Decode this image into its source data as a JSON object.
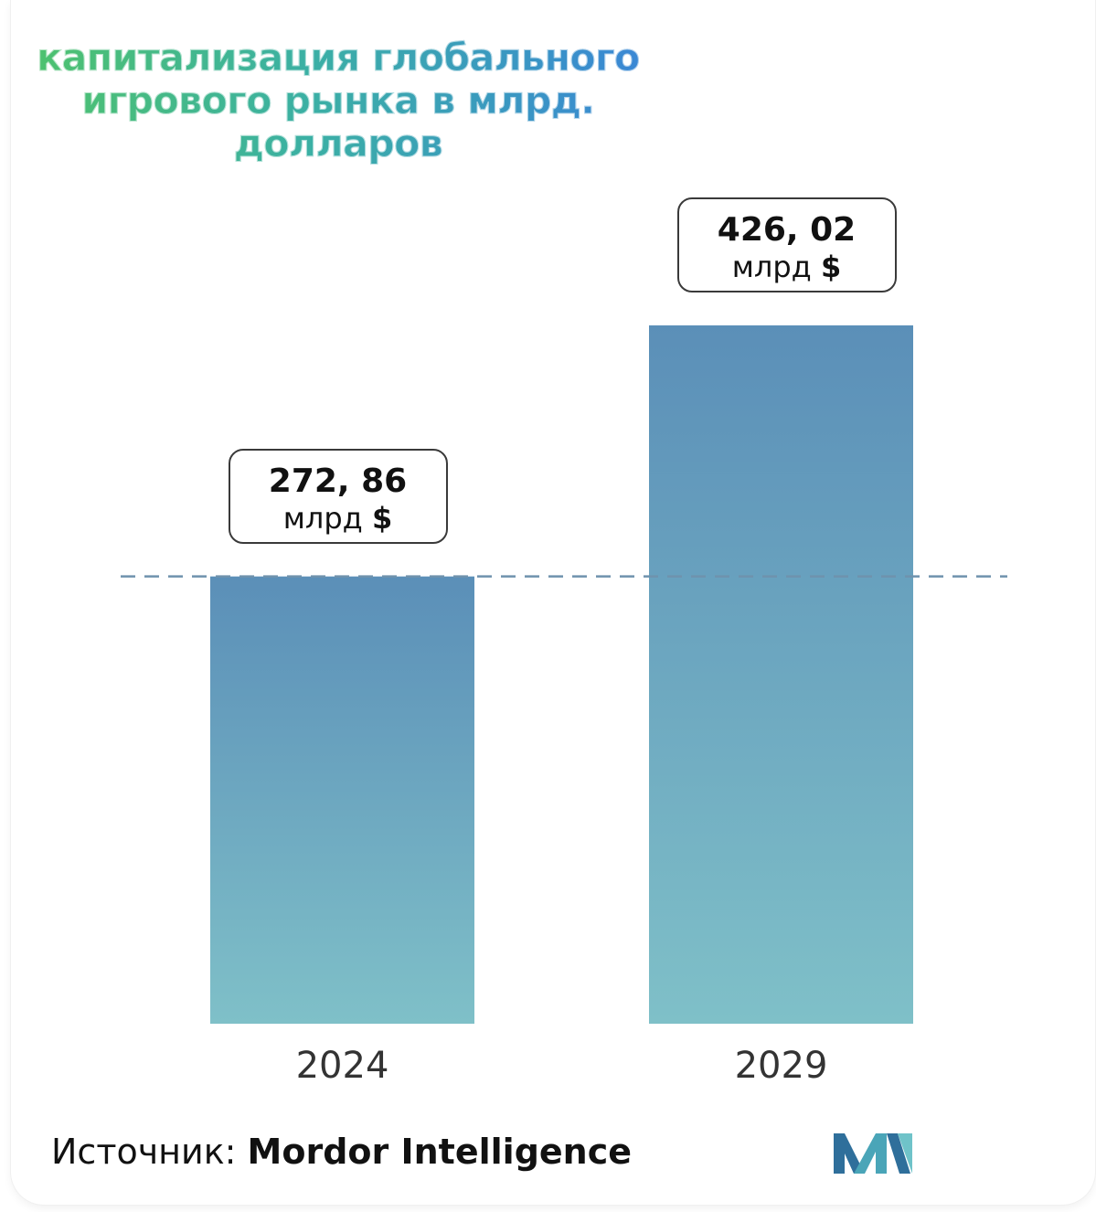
{
  "title": "капитализация глобального игрового рынка в млрд. долларов",
  "source": {
    "label": "Источник:",
    "name": "Mordor Intelligence"
  },
  "colors": {
    "bar_top": "#5b8fb8",
    "bar_bottom": "#7fc0c8",
    "reference_line": "#6f92ad"
  },
  "chart_data": {
    "type": "bar",
    "categories": [
      "2024",
      "2029"
    ],
    "values": [
      272.86,
      426.02
    ],
    "value_labels": [
      "272, 86",
      "426, 02"
    ],
    "unit_label": "млрд",
    "currency_label": "$",
    "title": "капитализация глобального игрового рынка в млрд. долларов",
    "ylim": [
      0,
      426.02
    ],
    "grid": false,
    "reference_line_at": 272.86
  }
}
